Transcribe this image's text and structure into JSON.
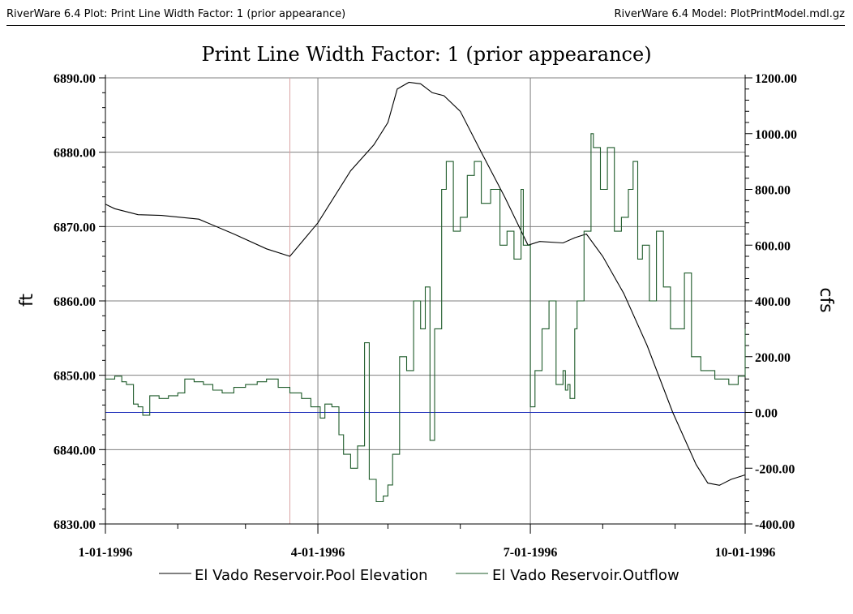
{
  "header": {
    "left": "RiverWare 6.4 Plot: Print Line Width Factor: 1 (prior appearance)",
    "right": "RiverWare 6.4 Model: PlotPrintModel.mdl.gz"
  },
  "colors": {
    "pool_line": "#000000",
    "outflow_line": "#1e5b2a",
    "grid": "#7f7f7f",
    "zero_line": "#2233bb",
    "marker_line": "#d9a3a3"
  },
  "chart_data": {
    "type": "line",
    "title": "Print Line Width Factor: 1 (prior appearance)",
    "xlabel": "",
    "ylabel_left": "ft",
    "ylabel_right": "cfs",
    "x_range": [
      "1996-01-01",
      "1996-10-01"
    ],
    "x_tick_labels": [
      "1-01-1996",
      "4-01-1996",
      "7-01-1996",
      "10-01-1996"
    ],
    "x_tick_dates": [
      "1996-01-01",
      "1996-04-01",
      "1996-07-01",
      "1996-10-01"
    ],
    "ylim_left": [
      6830,
      6890
    ],
    "ylim_right": [
      -400,
      1200
    ],
    "y_left_ticks": [
      "6830.00",
      "6840.00",
      "6850.00",
      "6860.00",
      "6870.00",
      "6880.00",
      "6890.00"
    ],
    "y_right_ticks": [
      "-400.00",
      "-200.00",
      "0.00",
      "200.00",
      "400.00",
      "600.00",
      "800.00",
      "1000.00",
      "1200.00"
    ],
    "grid": true,
    "legend_position": "bottom",
    "vertical_marker_date": "1996-03-20",
    "series": [
      {
        "name": "El Vado Reservoir.Pool Elevation",
        "axis": "left",
        "style": "line",
        "x": [
          "1996-01-01",
          "1996-01-05",
          "1996-01-15",
          "1996-01-25",
          "1996-02-10",
          "1996-02-25",
          "1996-03-10",
          "1996-03-20",
          "1996-04-01",
          "1996-04-15",
          "1996-04-25",
          "1996-05-01",
          "1996-05-05",
          "1996-05-10",
          "1996-05-15",
          "1996-05-20",
          "1996-05-25",
          "1996-06-01",
          "1996-06-10",
          "1996-06-20",
          "1996-06-30",
          "1996-07-05",
          "1996-07-15",
          "1996-07-20",
          "1996-07-25",
          "1996-08-01",
          "1996-08-10",
          "1996-08-20",
          "1996-08-31",
          "1996-09-10",
          "1996-09-15",
          "1996-09-20",
          "1996-09-25",
          "1996-10-01"
        ],
        "values": [
          6873.0,
          6872.4,
          6871.6,
          6871.5,
          6871.0,
          6869.0,
          6867.0,
          6866.0,
          6870.5,
          6877.5,
          6881.0,
          6884.0,
          6888.5,
          6889.4,
          6889.2,
          6888.0,
          6887.6,
          6885.5,
          6880.0,
          6874.0,
          6867.5,
          6868.0,
          6867.8,
          6868.5,
          6869.0,
          6866.0,
          6861.0,
          6854.0,
          6845.0,
          6838.0,
          6835.5,
          6835.2,
          6836.0,
          6836.6
        ]
      },
      {
        "name": "El Vado Reservoir.Outflow",
        "axis": "right",
        "style": "step",
        "x": [
          "1996-01-01",
          "1996-01-05",
          "1996-01-08",
          "1996-01-10",
          "1996-01-13",
          "1996-01-15",
          "1996-01-17",
          "1996-01-20",
          "1996-01-24",
          "1996-01-28",
          "1996-02-01",
          "1996-02-04",
          "1996-02-08",
          "1996-02-12",
          "1996-02-16",
          "1996-02-20",
          "1996-02-25",
          "1996-03-01",
          "1996-03-06",
          "1996-03-10",
          "1996-03-15",
          "1996-03-20",
          "1996-03-25",
          "1996-03-29",
          "1996-04-02",
          "1996-04-04",
          "1996-04-07",
          "1996-04-10",
          "1996-04-12",
          "1996-04-15",
          "1996-04-18",
          "1996-04-21",
          "1996-04-23",
          "1996-04-26",
          "1996-04-29",
          "1996-05-01",
          "1996-05-03",
          "1996-05-06",
          "1996-05-09",
          "1996-05-12",
          "1996-05-15",
          "1996-05-17",
          "1996-05-19",
          "1996-05-21",
          "1996-05-24",
          "1996-05-26",
          "1996-05-29",
          "1996-06-01",
          "1996-06-04",
          "1996-06-07",
          "1996-06-10",
          "1996-06-14",
          "1996-06-18",
          "1996-06-21",
          "1996-06-24",
          "1996-06-27",
          "1996-06-28",
          "1996-07-01",
          "1996-07-03",
          "1996-07-06",
          "1996-07-09",
          "1996-07-12",
          "1996-07-15",
          "1996-07-16",
          "1996-07-17",
          "1996-07-18",
          "1996-07-20",
          "1996-07-21",
          "1996-07-24",
          "1996-07-27",
          "1996-07-28",
          "1996-07-31",
          "1996-08-03",
          "1996-08-06",
          "1996-08-09",
          "1996-08-12",
          "1996-08-14",
          "1996-08-16",
          "1996-08-18",
          "1996-08-21",
          "1996-08-24",
          "1996-08-27",
          "1996-08-30",
          "1996-09-02",
          "1996-09-05",
          "1996-09-08",
          "1996-09-12",
          "1996-09-18",
          "1996-09-24",
          "1996-09-28",
          "1996-10-01"
        ],
        "values": [
          120,
          130,
          110,
          100,
          30,
          20,
          -10,
          60,
          50,
          60,
          70,
          120,
          110,
          100,
          80,
          70,
          90,
          100,
          110,
          120,
          90,
          70,
          50,
          20,
          -20,
          30,
          20,
          -80,
          -150,
          -200,
          -120,
          250,
          -240,
          -320,
          -300,
          -260,
          -150,
          200,
          150,
          400,
          300,
          450,
          -100,
          300,
          800,
          900,
          650,
          700,
          850,
          900,
          750,
          800,
          600,
          650,
          550,
          800,
          600,
          20,
          150,
          300,
          400,
          100,
          150,
          80,
          100,
          50,
          300,
          400,
          650,
          1000,
          950,
          800,
          950,
          650,
          700,
          800,
          900,
          550,
          600,
          400,
          650,
          450,
          300,
          300,
          500,
          200,
          150,
          120,
          100,
          130,
          300
        ]
      }
    ]
  }
}
